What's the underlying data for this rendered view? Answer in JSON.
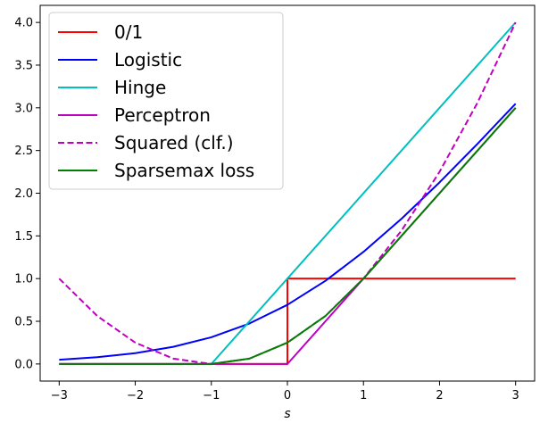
{
  "chart_data": {
    "type": "line",
    "title": "",
    "xlabel": "s",
    "ylabel": "",
    "xlim": [
      -3.25,
      3.25
    ],
    "ylim": [
      -0.2,
      4.2
    ],
    "grid": false,
    "legend_position": "top-left",
    "xticks": [
      -3,
      -2,
      -1,
      0,
      1,
      2,
      3
    ],
    "xtick_labels": [
      "−3",
      "−2",
      "−1",
      "0",
      "1",
      "2",
      "3"
    ],
    "yticks": [
      0.0,
      0.5,
      1.0,
      1.5,
      2.0,
      2.5,
      3.0,
      3.5,
      4.0
    ],
    "ytick_labels": [
      "0.0",
      "0.5",
      "1.0",
      "1.5",
      "2.0",
      "2.5",
      "3.0",
      "3.5",
      "4.0"
    ],
    "series": [
      {
        "name": "0/1",
        "color": "#ff0000",
        "dash": "solid",
        "x": [
          -3,
          0,
          0,
          3
        ],
        "y": [
          0,
          0,
          1,
          1
        ]
      },
      {
        "name": "Logistic",
        "color": "#0000ff",
        "dash": "solid",
        "x": [
          -3,
          -2.5,
          -2,
          -1.5,
          -1,
          -0.5,
          0,
          0.5,
          1,
          1.5,
          2,
          2.5,
          3
        ],
        "y": [
          0.049,
          0.079,
          0.127,
          0.201,
          0.313,
          0.474,
          0.693,
          0.974,
          1.313,
          1.701,
          2.127,
          2.579,
          3.049
        ]
      },
      {
        "name": "Hinge",
        "color": "#00bfbf",
        "dash": "solid",
        "x": [
          -3,
          -1,
          3
        ],
        "y": [
          0,
          0,
          4
        ]
      },
      {
        "name": "Perceptron",
        "color": "#bf00bf",
        "dash": "solid",
        "x": [
          -3,
          0,
          3
        ],
        "y": [
          0,
          0,
          3
        ]
      },
      {
        "name": "Squared (clf.)",
        "color": "#bf00bf",
        "dash": "dashed",
        "x": [
          -3,
          -2.5,
          -2,
          -1.5,
          -1,
          -0.5,
          0,
          0.5,
          1,
          1.5,
          2,
          2.5,
          3
        ],
        "y": [
          1.0,
          0.5625,
          0.25,
          0.0625,
          0,
          0.0625,
          0.25,
          0.5625,
          1.0,
          1.5625,
          2.25,
          3.0625,
          4.0
        ]
      },
      {
        "name": "Sparsemax loss",
        "color": "#008000",
        "dash": "solid",
        "x": [
          -3,
          -1,
          -0.5,
          0,
          0.5,
          1,
          2,
          3
        ],
        "y": [
          0,
          0,
          0.0625,
          0.25,
          0.5625,
          1.0,
          2.0,
          3.0
        ]
      }
    ]
  }
}
